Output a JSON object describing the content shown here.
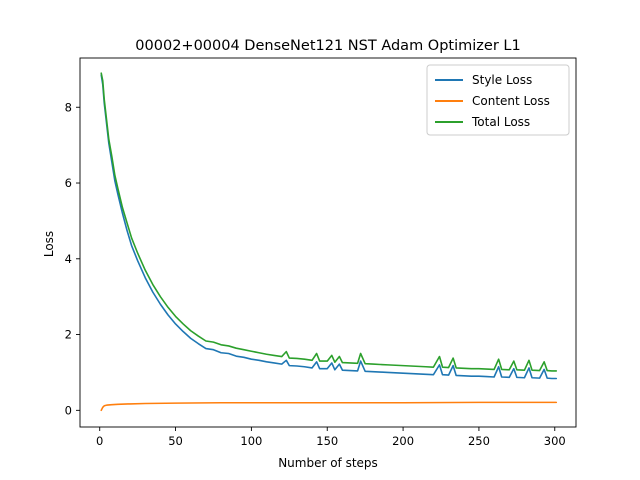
{
  "chart_data": {
    "type": "line",
    "title": "00002+00004 DenseNet121 NST Adam Optimizer L1",
    "xlabel": "Number of steps",
    "ylabel": "Loss",
    "xlim": [
      -13,
      314
    ],
    "ylim": [
      -0.44,
      9.3
    ],
    "xticks": [
      0,
      50,
      100,
      150,
      200,
      250,
      300
    ],
    "yticks": [
      0,
      2,
      4,
      6,
      8
    ],
    "grid": false,
    "legend_position": "top-right",
    "series": [
      {
        "name": "Style Loss",
        "color": "#1f77b4",
        "x": [
          1,
          2,
          3,
          4,
          5,
          6,
          8,
          10,
          12,
          15,
          18,
          21,
          25,
          30,
          35,
          40,
          45,
          50,
          55,
          60,
          65,
          70,
          75,
          80,
          85,
          90,
          95,
          100,
          105,
          110,
          115,
          120,
          123,
          125,
          130,
          135,
          140,
          143,
          145,
          150,
          153,
          155,
          158,
          160,
          165,
          170,
          172,
          175,
          180,
          185,
          190,
          195,
          200,
          205,
          210,
          215,
          220,
          224,
          226,
          230,
          233,
          235,
          240,
          245,
          250,
          255,
          260,
          263,
          265,
          270,
          273,
          275,
          280,
          283,
          285,
          290,
          293,
          295,
          298,
          301
        ],
        "values": [
          8.85,
          8.6,
          8.1,
          7.75,
          7.4,
          7.05,
          6.55,
          6.05,
          5.7,
          5.2,
          4.75,
          4.35,
          3.95,
          3.5,
          3.12,
          2.8,
          2.52,
          2.28,
          2.08,
          1.9,
          1.76,
          1.63,
          1.6,
          1.52,
          1.5,
          1.43,
          1.4,
          1.35,
          1.32,
          1.28,
          1.25,
          1.22,
          1.32,
          1.18,
          1.17,
          1.15,
          1.12,
          1.28,
          1.1,
          1.1,
          1.25,
          1.07,
          1.22,
          1.06,
          1.05,
          1.04,
          1.3,
          1.03,
          1.02,
          1.01,
          1.0,
          0.99,
          0.98,
          0.97,
          0.96,
          0.95,
          0.94,
          1.2,
          0.94,
          0.93,
          1.18,
          0.92,
          0.91,
          0.9,
          0.9,
          0.89,
          0.88,
          1.15,
          0.88,
          0.87,
          1.1,
          0.87,
          0.86,
          1.12,
          0.86,
          0.85,
          1.08,
          0.85,
          0.84,
          0.84
        ]
      },
      {
        "name": "Content Loss",
        "color": "#ff7f0e",
        "x": [
          1,
          2,
          3,
          5,
          8,
          12,
          20,
          30,
          50,
          80,
          120,
          160,
          200,
          250,
          301
        ],
        "values": [
          0.0,
          0.08,
          0.12,
          0.14,
          0.15,
          0.16,
          0.17,
          0.18,
          0.19,
          0.2,
          0.2,
          0.2,
          0.2,
          0.21,
          0.21
        ]
      },
      {
        "name": "Total Loss",
        "color": "#2ca02c",
        "x": [
          1,
          2,
          3,
          4,
          5,
          6,
          8,
          10,
          12,
          15,
          18,
          21,
          25,
          30,
          35,
          40,
          45,
          50,
          55,
          60,
          65,
          70,
          75,
          80,
          85,
          90,
          95,
          100,
          105,
          110,
          115,
          120,
          123,
          125,
          130,
          135,
          140,
          143,
          145,
          150,
          153,
          155,
          158,
          160,
          165,
          170,
          172,
          175,
          180,
          185,
          190,
          195,
          200,
          205,
          210,
          215,
          220,
          224,
          226,
          230,
          233,
          235,
          240,
          245,
          250,
          255,
          260,
          263,
          265,
          270,
          273,
          275,
          280,
          283,
          285,
          290,
          293,
          295,
          298,
          301
        ],
        "values": [
          8.9,
          8.7,
          8.2,
          7.85,
          7.5,
          7.15,
          6.7,
          6.2,
          5.85,
          5.35,
          4.95,
          4.55,
          4.15,
          3.7,
          3.32,
          3.0,
          2.72,
          2.48,
          2.28,
          2.1,
          1.96,
          1.83,
          1.8,
          1.73,
          1.7,
          1.64,
          1.6,
          1.56,
          1.52,
          1.48,
          1.45,
          1.42,
          1.55,
          1.38,
          1.37,
          1.35,
          1.32,
          1.5,
          1.3,
          1.3,
          1.45,
          1.27,
          1.42,
          1.26,
          1.25,
          1.24,
          1.5,
          1.23,
          1.22,
          1.21,
          1.2,
          1.19,
          1.18,
          1.17,
          1.16,
          1.15,
          1.14,
          1.42,
          1.14,
          1.13,
          1.38,
          1.12,
          1.11,
          1.1,
          1.1,
          1.09,
          1.08,
          1.35,
          1.08,
          1.07,
          1.3,
          1.07,
          1.06,
          1.32,
          1.06,
          1.05,
          1.28,
          1.05,
          1.04,
          1.04
        ]
      }
    ]
  }
}
